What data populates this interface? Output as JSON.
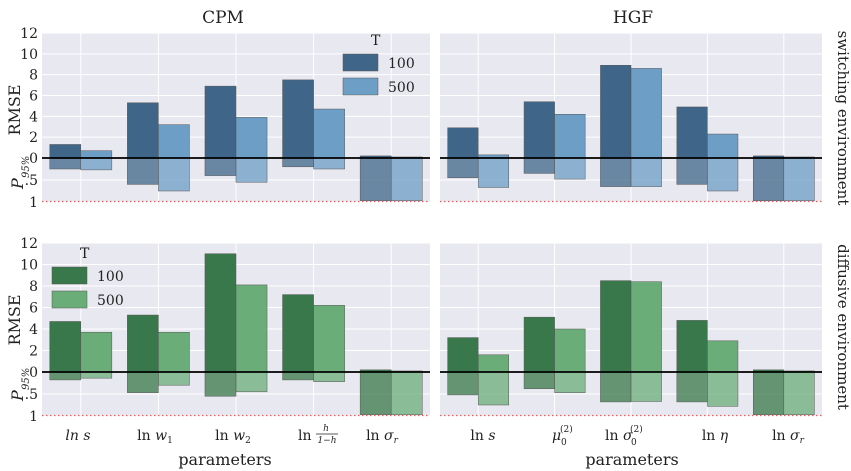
{
  "column_titles": [
    "CPM",
    "HGF"
  ],
  "row_titles": [
    "switching environment",
    "diffusive environment"
  ],
  "ylabel_rmse": "RMSE",
  "ylabel_p": "P",
  "ylabel_p_sub": "95%",
  "xlabel": "parameters",
  "legend_title": "T",
  "legend_labels": [
    "100",
    "500"
  ],
  "colors": {
    "switching": [
      "#3f6688",
      "#6d9ec6"
    ],
    "diffusive": [
      "#39784a",
      "#6bad79"
    ],
    "axes_bg": "#e8e8f0",
    "grid": "#ffffff",
    "zero_line": "#000000",
    "dotted": "#e06060"
  },
  "cpm_params": [
    "ln s",
    "ln w1",
    "ln w2",
    "ln h/(1-h)",
    "ln σr"
  ],
  "hgf_params": [
    "ln s",
    "μ0(2)",
    "ln σ0(2)",
    "ln η",
    "ln σr"
  ],
  "chart_data": [
    {
      "type": "bar",
      "title": "CPM",
      "row": "switching environment",
      "ylabel": "RMSE",
      "rmse_ylim": [
        0,
        12
      ],
      "rmse_ticks": [
        "0",
        "2",
        "4",
        "6",
        "8",
        "10",
        "12"
      ],
      "p_ylim": [
        0,
        1
      ],
      "p_ticks": [
        "0",
        ".5",
        "1"
      ],
      "categories": [
        "ln s",
        "ln w1",
        "ln w2",
        "ln h/(1-h)",
        "ln σr"
      ],
      "series": [
        {
          "name": "100",
          "rmse": [
            1.3,
            5.3,
            6.9,
            7.5,
            0.2
          ],
          "p95": [
            0.25,
            0.6,
            0.4,
            0.2,
            0.97
          ]
        },
        {
          "name": "500",
          "rmse": [
            0.7,
            3.2,
            3.9,
            4.7,
            0.1
          ],
          "p95": [
            0.27,
            0.75,
            0.55,
            0.25,
            0.97
          ]
        }
      ]
    },
    {
      "type": "bar",
      "title": "HGF",
      "row": "switching environment",
      "rmse_ylim": [
        0,
        12
      ],
      "p_ylim": [
        0,
        1
      ],
      "categories": [
        "ln s",
        "μ0(2)",
        "ln σ0(2)",
        "ln η",
        "ln σr"
      ],
      "series": [
        {
          "name": "100",
          "rmse": [
            2.9,
            5.4,
            8.9,
            4.9,
            0.2
          ],
          "p95": [
            0.45,
            0.35,
            0.65,
            0.6,
            0.97
          ]
        },
        {
          "name": "500",
          "rmse": [
            0.3,
            4.2,
            8.6,
            2.3,
            0.1
          ],
          "p95": [
            0.67,
            0.48,
            0.65,
            0.75,
            0.97
          ]
        }
      ]
    },
    {
      "type": "bar",
      "title": "CPM",
      "row": "diffusive environment",
      "ylabel": "RMSE",
      "rmse_ylim": [
        0,
        12
      ],
      "rmse_ticks": [
        "0",
        "2",
        "4",
        "6",
        "8",
        "10",
        "12"
      ],
      "p_ylim": [
        0,
        1
      ],
      "p_ticks": [
        "0",
        ".5",
        "1"
      ],
      "categories": [
        "ln s",
        "ln w1",
        "ln w2",
        "ln h/(1-h)",
        "ln σr"
      ],
      "series": [
        {
          "name": "100",
          "rmse": [
            4.7,
            5.3,
            11.0,
            7.2,
            0.2
          ],
          "p95": [
            0.18,
            0.47,
            0.55,
            0.18,
            0.97
          ]
        },
        {
          "name": "500",
          "rmse": [
            3.7,
            3.7,
            8.1,
            6.2,
            0.1
          ],
          "p95": [
            0.14,
            0.3,
            0.45,
            0.22,
            0.97
          ]
        }
      ]
    },
    {
      "type": "bar",
      "title": "HGF",
      "row": "diffusive environment",
      "rmse_ylim": [
        0,
        12
      ],
      "p_ylim": [
        0,
        1
      ],
      "categories": [
        "ln s",
        "μ0(2)",
        "ln σ0(2)",
        "ln η",
        "ln σr"
      ],
      "series": [
        {
          "name": "100",
          "rmse": [
            3.2,
            5.1,
            8.5,
            4.8,
            0.2
          ],
          "p95": [
            0.52,
            0.38,
            0.68,
            0.68,
            0.97
          ]
        },
        {
          "name": "500",
          "rmse": [
            1.6,
            4.0,
            8.4,
            2.9,
            0.1
          ],
          "p95": [
            0.75,
            0.47,
            0.67,
            0.78,
            0.97
          ]
        }
      ]
    }
  ]
}
